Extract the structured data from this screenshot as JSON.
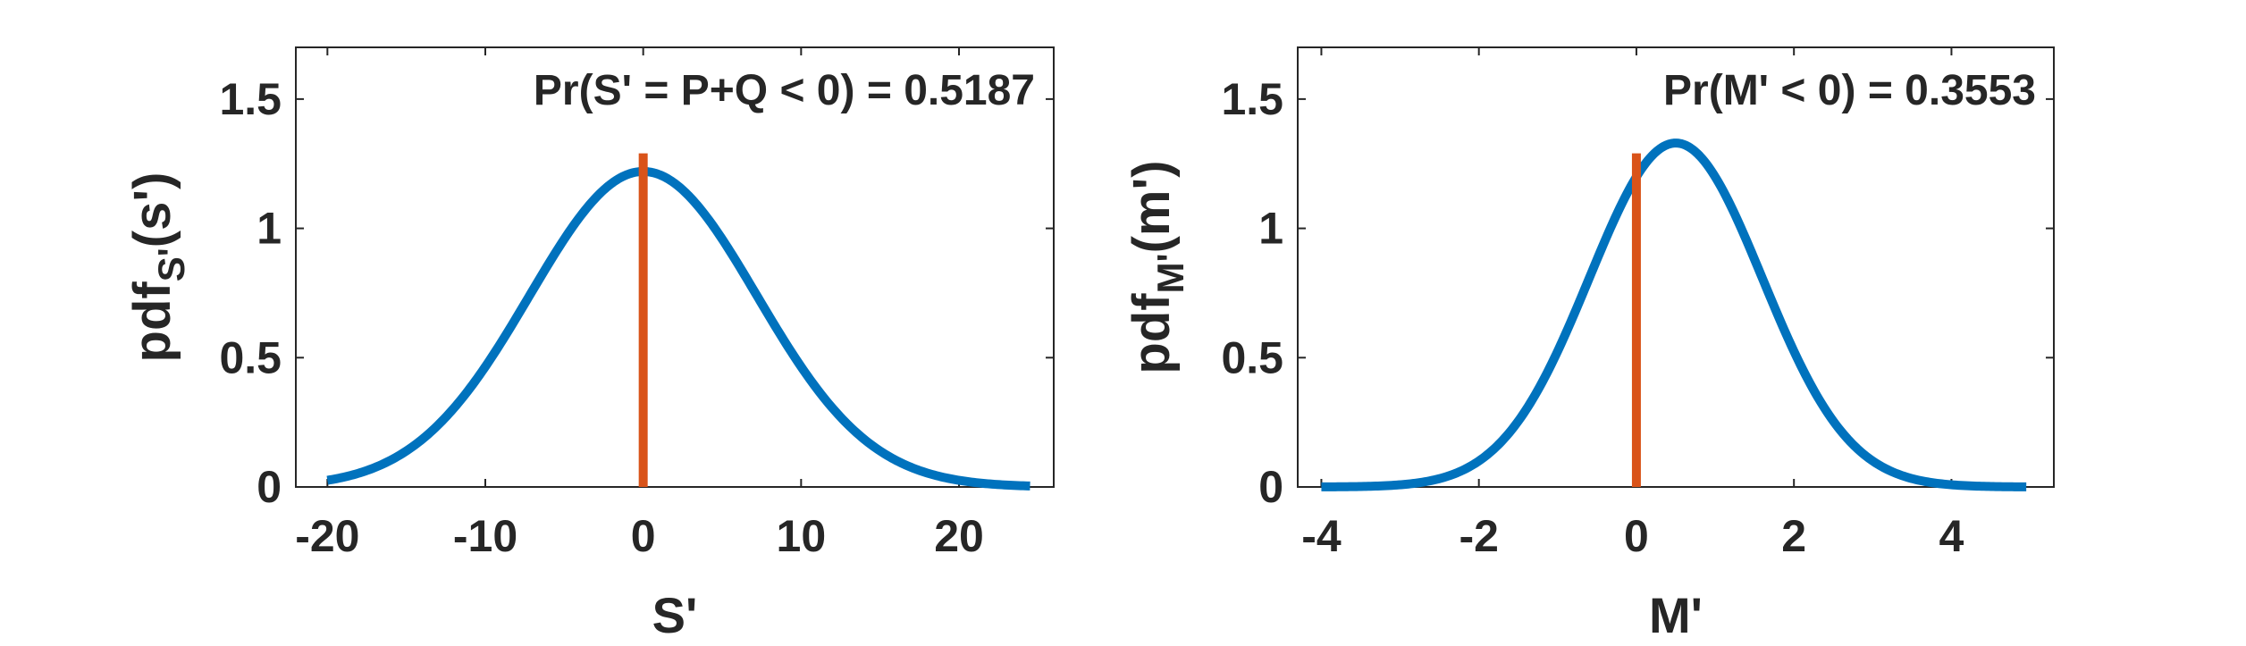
{
  "chart_data": [
    {
      "type": "line",
      "title": "",
      "annotation": "Pr(S' = P+Q < 0) = 0.5187",
      "xlabel": "S'",
      "ylabel": "pdf",
      "ylabel_sub": "S'",
      "ylabel_arg": "(s')",
      "xlim": [
        -22,
        26
      ],
      "ylim": [
        0,
        1.7
      ],
      "xticks": [
        -20,
        -10,
        0,
        10,
        20
      ],
      "xtick_labels": [
        "-20",
        "-10",
        "0",
        "10",
        "20"
      ],
      "yticks": [
        0,
        0.5,
        1,
        1.5
      ],
      "ytick_labels": [
        "0",
        "0.5",
        "1",
        "1.5"
      ],
      "curve": {
        "kind": "gaussian",
        "mean": 0,
        "sd": 7.2,
        "peak": 1.22,
        "x_start": -20,
        "x_end": 24.5,
        "color": "#0072BD"
      },
      "vertical_line": {
        "x": 0,
        "y_top": 1.29,
        "color": "#D95319"
      },
      "grid": false
    },
    {
      "type": "line",
      "title": "",
      "annotation": "Pr(M' < 0) = 0.3553",
      "xlabel": "M'",
      "ylabel": "pdf",
      "ylabel_sub": "M'",
      "ylabel_arg": "(m')",
      "xlim": [
        -4.3,
        5.3
      ],
      "ylim": [
        0,
        1.7
      ],
      "xticks": [
        -4,
        -2,
        0,
        2,
        4
      ],
      "xtick_labels": [
        "-4",
        "-2",
        "0",
        "2",
        "4"
      ],
      "yticks": [
        0,
        0.5,
        1,
        1.5
      ],
      "ytick_labels": [
        "0",
        "0.5",
        "1",
        "1.5"
      ],
      "curve": {
        "kind": "gaussian",
        "mean": 0.5,
        "sd": 1.1,
        "peak": 1.33,
        "x_start": -4,
        "x_end": 4.95,
        "color": "#0072BD"
      },
      "vertical_line": {
        "x": 0,
        "y_top": 1.29,
        "color": "#D95319"
      },
      "grid": false
    }
  ]
}
